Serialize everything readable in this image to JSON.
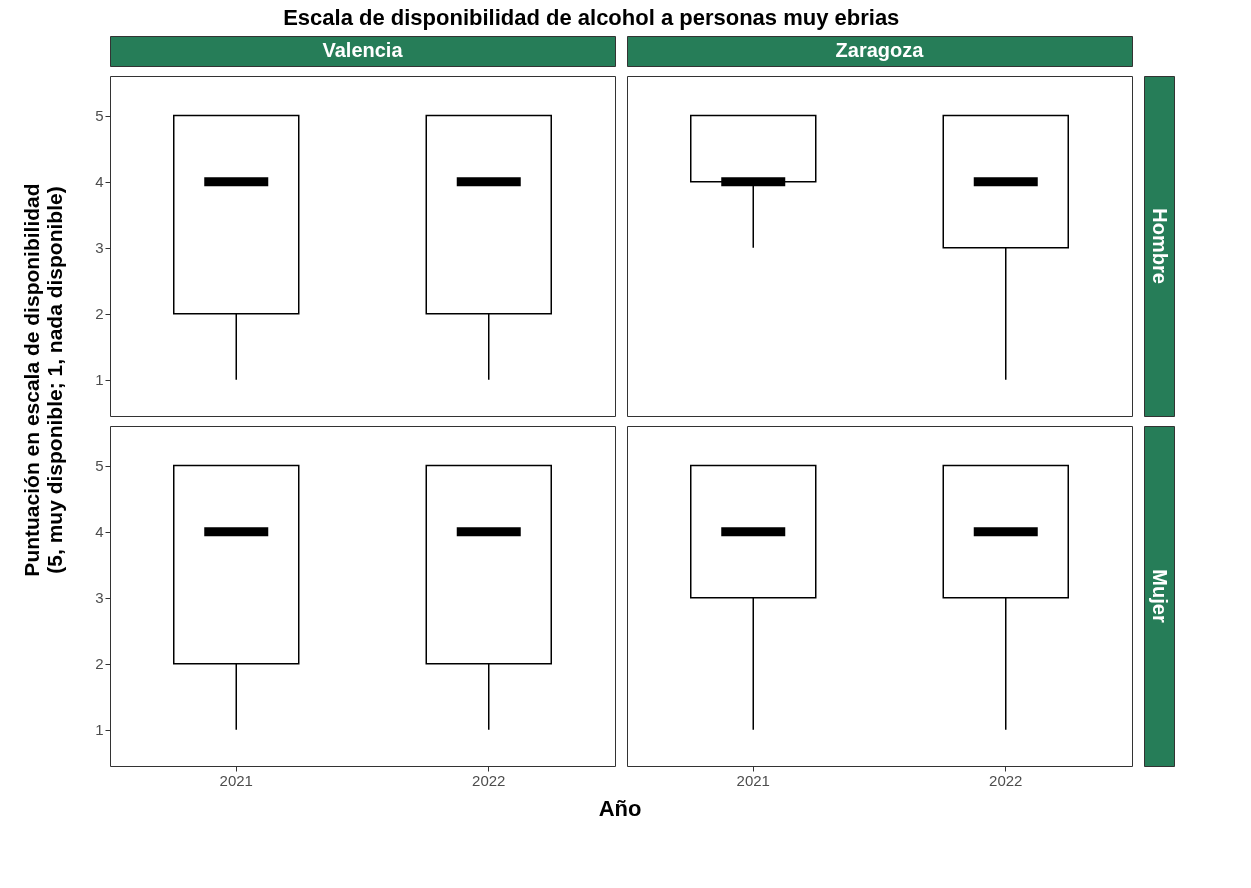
{
  "chart_data": [
    {
      "type": "box",
      "title": "Escala de disponibilidad de alcohol a personas muy ebrias",
      "subtitle": "Valencia",
      "xlabel": "Año",
      "ylabel": "Puntuación en escala de disponibilidad\n(5, muy disponible; 1, nada disponible)",
      "categories": [
        "2021",
        "2022"
      ],
      "boxes": [
        {
          "low": 1,
          "q1": 2,
          "median": 4,
          "q3": 5,
          "high": 5
        },
        {
          "low": 1,
          "q1": 2,
          "median": 4,
          "q3": 5,
          "high": 5
        }
      ],
      "ylim": [
        0.45,
        5.6
      ],
      "yticks": [
        1,
        2,
        3,
        4,
        5
      ],
      "grid": false,
      "tick_labels": "y"
    },
    {
      "type": "box",
      "subtitle": "Zaragoza",
      "y2label": "Hombre",
      "categories": [
        "2021",
        "2022"
      ],
      "boxes": [
        {
          "low": 3,
          "q1": 4,
          "median": 4,
          "q3": 5,
          "high": 5
        },
        {
          "low": 1,
          "q1": 3,
          "median": 4,
          "q3": 5,
          "high": 5
        }
      ],
      "ylim": [
        0.45,
        5.6
      ],
      "yticks": [
        1,
        2,
        3,
        4,
        5
      ],
      "grid": false,
      "tick_labels": false
    },
    {
      "type": "box",
      "categories": [
        "2021",
        "2022"
      ],
      "boxes": [
        {
          "low": 1,
          "q1": 2,
          "median": 4,
          "q3": 5,
          "high": 5
        },
        {
          "low": 1,
          "q1": 2,
          "median": 4,
          "q3": 5,
          "high": 5
        }
      ],
      "ylim": [
        0.45,
        5.6
      ],
      "yticks": [
        1,
        2,
        3,
        4,
        5
      ],
      "grid": false
    },
    {
      "type": "box",
      "y2label": "Mujer",
      "categories": [
        "2021",
        "2022"
      ],
      "boxes": [
        {
          "low": 1,
          "q1": 3,
          "median": 4,
          "q3": 5,
          "high": 5
        },
        {
          "low": 1,
          "q1": 3,
          "median": 4,
          "q3": 5,
          "high": 5
        }
      ],
      "ylim": [
        0.45,
        5.6
      ],
      "yticks": [
        1,
        2,
        3,
        4,
        5
      ],
      "grid": false,
      "tick_labels": "x"
    }
  ]
}
